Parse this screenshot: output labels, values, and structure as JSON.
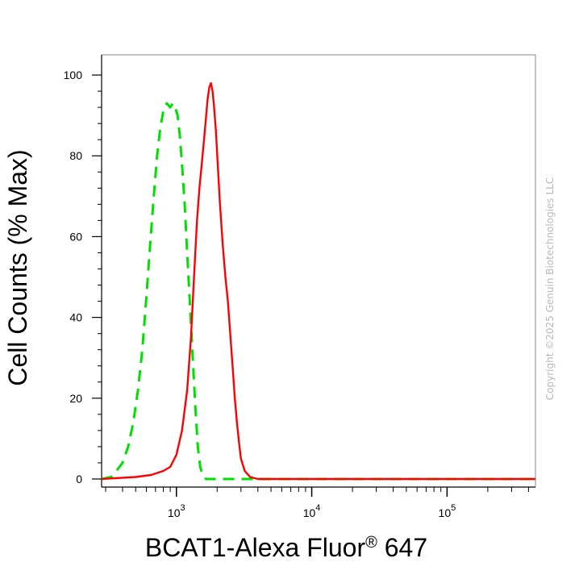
{
  "chart_data": {
    "type": "line",
    "title": "",
    "xlabel": "BCAT1-Alexa Fluor",
    "xlabel_sup": "®",
    "xlabel_suffix": " 647",
    "ylabel": "Cell Counts (% Max)",
    "x_scale": "log",
    "xlim": [
      280,
      450000
    ],
    "ylim": [
      -2,
      105
    ],
    "y_ticks": [
      0,
      20,
      40,
      60,
      80,
      100
    ],
    "x_ticks": [
      1000,
      10000,
      100000
    ],
    "x_tick_labels": [
      {
        "base": "10",
        "exp": "3"
      },
      {
        "base": "10",
        "exp": "4"
      },
      {
        "base": "10",
        "exp": "5"
      }
    ],
    "grid": false,
    "series": [
      {
        "color": "#00e000",
        "style": "dashed",
        "points": [
          [
            280,
            0
          ],
          [
            330,
            0.5
          ],
          [
            360,
            2
          ],
          [
            400,
            4
          ],
          [
            440,
            8
          ],
          [
            480,
            14
          ],
          [
            520,
            22
          ],
          [
            560,
            32
          ],
          [
            600,
            45
          ],
          [
            640,
            58
          ],
          [
            680,
            70
          ],
          [
            720,
            80
          ],
          [
            760,
            87
          ],
          [
            800,
            91
          ],
          [
            850,
            93
          ],
          [
            900,
            92
          ],
          [
            940,
            93
          ],
          [
            980,
            92
          ],
          [
            1020,
            90
          ],
          [
            1060,
            85
          ],
          [
            1100,
            78
          ],
          [
            1150,
            68
          ],
          [
            1200,
            56
          ],
          [
            1260,
            43
          ],
          [
            1320,
            30
          ],
          [
            1380,
            18
          ],
          [
            1440,
            8
          ],
          [
            1500,
            3
          ],
          [
            1560,
            1
          ],
          [
            1650,
            0
          ],
          [
            3000,
            0
          ],
          [
            10000,
            0
          ],
          [
            100000,
            0
          ],
          [
            450000,
            0
          ]
        ]
      },
      {
        "color": "#ff0000",
        "style": "solid",
        "points": [
          [
            280,
            0
          ],
          [
            500,
            0.5
          ],
          [
            650,
            1
          ],
          [
            800,
            2
          ],
          [
            900,
            3
          ],
          [
            1000,
            6
          ],
          [
            1100,
            12
          ],
          [
            1200,
            22
          ],
          [
            1280,
            35
          ],
          [
            1350,
            50
          ],
          [
            1420,
            64
          ],
          [
            1480,
            72
          ],
          [
            1540,
            78
          ],
          [
            1600,
            84
          ],
          [
            1660,
            90
          ],
          [
            1700,
            94
          ],
          [
            1750,
            97
          ],
          [
            1800,
            98
          ],
          [
            1850,
            96
          ],
          [
            1900,
            92
          ],
          [
            1960,
            86
          ],
          [
            2020,
            78
          ],
          [
            2100,
            68
          ],
          [
            2200,
            58
          ],
          [
            2300,
            50
          ],
          [
            2400,
            44
          ],
          [
            2500,
            36
          ],
          [
            2600,
            28
          ],
          [
            2700,
            20
          ],
          [
            2800,
            14
          ],
          [
            2900,
            9
          ],
          [
            3000,
            5
          ],
          [
            3200,
            2
          ],
          [
            3500,
            0.5
          ],
          [
            4000,
            0
          ],
          [
            10000,
            0
          ],
          [
            100000,
            0
          ],
          [
            450000,
            0
          ]
        ]
      }
    ]
  },
  "watermark": "Copyright ©2025 Genuin Biotechnologies LLC"
}
